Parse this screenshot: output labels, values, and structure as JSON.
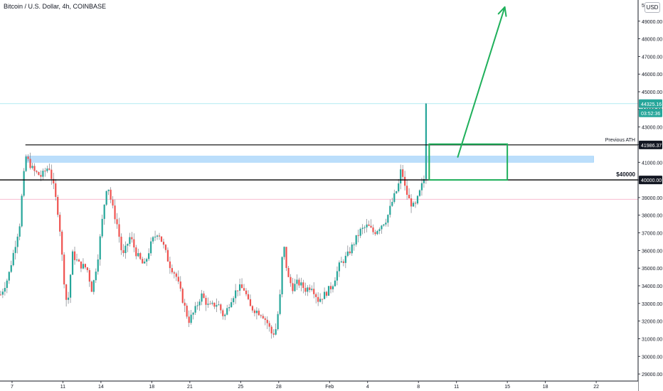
{
  "chart_title": "Bitcoin / U.S. Dollar, 4h, COINBASE",
  "currency_button": "USD",
  "colors": {
    "up": "#26a69a",
    "down": "#ef5350",
    "annotation_green": "#1fb05b",
    "resistance_band": "#bbdefb",
    "last_price_line": "#b2ebf2",
    "previous_close_line": "#f8bbd0",
    "level_line": "#000000"
  },
  "chart_data": {
    "type": "candlestick",
    "title": "Bitcoin / U.S. Dollar, 4h, COINBASE",
    "ylim": [
      28600,
      50200
    ],
    "y_ticks": [
      29000,
      30000,
      31000,
      32000,
      33000,
      34000,
      35000,
      36000,
      37000,
      38000,
      39000,
      40000,
      41000,
      42000,
      43000,
      44000,
      45000,
      46000,
      47000,
      48000,
      49000
    ],
    "y_tick_labels": [
      "29000.00",
      "30000.00",
      "31000.00",
      "32000.00",
      "33000.00",
      "34000.00",
      "35000.00",
      "36000.00",
      "37000.00",
      "38000.00",
      "39000.00",
      "40000.00",
      "41000.00",
      "42000.00",
      "43000.00",
      "44000.00",
      "45000.00",
      "46000.00",
      "47000.00",
      "48000.00",
      "49000.00"
    ],
    "top_partial_label": "5(",
    "x_ticks": [
      {
        "label": "7",
        "day": 0
      },
      {
        "label": "11",
        "day": 4
      },
      {
        "label": "14",
        "day": 7
      },
      {
        "label": "18",
        "day": 11
      },
      {
        "label": "21",
        "day": 14
      },
      {
        "label": "25",
        "day": 18
      },
      {
        "label": "28",
        "day": 21
      },
      {
        "label": "Feb",
        "day": 25
      },
      {
        "label": "4",
        "day": 28
      },
      {
        "label": "8",
        "day": 32
      },
      {
        "label": "11",
        "day": 35
      },
      {
        "label": "15",
        "day": 39
      },
      {
        "label": "18",
        "day": 42
      },
      {
        "label": "22",
        "day": 46
      }
    ],
    "x_axis_start_day": -0.95,
    "x_axis_end_day": 49.3,
    "candles_per_day": 6,
    "first_candle_day": -0.9,
    "close_path": [
      [
        -0.9,
        33500
      ],
      [
        -0.3,
        34500
      ],
      [
        0.6,
        37500
      ],
      [
        0.85,
        39800
      ],
      [
        1.1,
        41300
      ],
      [
        1.7,
        40500
      ],
      [
        2.3,
        40200
      ],
      [
        2.9,
        40800
      ],
      [
        3.3,
        39500
      ],
      [
        3.7,
        37800
      ],
      [
        4.05,
        34600
      ],
      [
        4.35,
        32700
      ],
      [
        4.75,
        35800
      ],
      [
        5.3,
        35200
      ],
      [
        5.9,
        35000
      ],
      [
        6.3,
        33700
      ],
      [
        6.75,
        35600
      ],
      [
        7.2,
        38300
      ],
      [
        7.5,
        39900
      ],
      [
        7.85,
        38600
      ],
      [
        8.3,
        37400
      ],
      [
        8.7,
        35600
      ],
      [
        9.3,
        36800
      ],
      [
        9.8,
        35800
      ],
      [
        10.4,
        35100
      ],
      [
        11.0,
        36500
      ],
      [
        11.5,
        37100
      ],
      [
        11.9,
        36300
      ],
      [
        12.4,
        35200
      ],
      [
        12.9,
        34600
      ],
      [
        13.4,
        33300
      ],
      [
        13.9,
        32000
      ],
      [
        14.4,
        32600
      ],
      [
        14.9,
        33500
      ],
      [
        15.5,
        32800
      ],
      [
        16.2,
        33000
      ],
      [
        16.7,
        32200
      ],
      [
        17.2,
        33200
      ],
      [
        17.8,
        33900
      ],
      [
        18.3,
        33800
      ],
      [
        18.7,
        32800
      ],
      [
        19.2,
        32600
      ],
      [
        19.7,
        32400
      ],
      [
        20.1,
        31900
      ],
      [
        20.5,
        31200
      ],
      [
        20.8,
        31600
      ],
      [
        21.1,
        33400
      ],
      [
        21.35,
        36600
      ],
      [
        21.7,
        34500
      ],
      [
        22.1,
        33900
      ],
      [
        22.5,
        34200
      ],
      [
        23.1,
        33800
      ],
      [
        23.6,
        34000
      ],
      [
        24.1,
        33200
      ],
      [
        24.6,
        33500
      ],
      [
        25.2,
        34000
      ],
      [
        25.8,
        35200
      ],
      [
        26.4,
        35700
      ],
      [
        26.9,
        36400
      ],
      [
        27.4,
        37100
      ],
      [
        28.0,
        37400
      ],
      [
        28.5,
        37000
      ],
      [
        29.0,
        37400
      ],
      [
        29.5,
        37800
      ],
      [
        30.0,
        38900
      ],
      [
        30.4,
        39600
      ],
      [
        30.65,
        40700
      ],
      [
        30.95,
        39500
      ],
      [
        31.3,
        38800
      ],
      [
        31.7,
        38400
      ],
      [
        32.15,
        39400
      ],
      [
        32.45,
        40100
      ],
      [
        32.6,
        43800
      ],
      [
        32.7,
        44325.16
      ]
    ],
    "last_price": 44325.16,
    "last_price_label": "44325.16",
    "countdown_label": "03:52:36",
    "previous_close": 38900,
    "annotations": {
      "previous_ath": {
        "label": "Previous ATH",
        "value": 41986.37,
        "value_label": "41986.37",
        "start_day": 1.05
      },
      "support_40000": {
        "label": "$40000",
        "value": 40000,
        "value_label": "40000.00"
      },
      "resistance_band": {
        "from": 41000,
        "to": 41350,
        "start_day": 1.05,
        "end_day": 45.8
      },
      "target_box": {
        "day_from": 32.85,
        "day_to": 39.0,
        "value_from": 40000,
        "value_to": 42030
      },
      "projection_arrow": {
        "from": [
          35.1,
          41300
        ],
        "to": [
          38.8,
          49800
        ]
      }
    }
  }
}
